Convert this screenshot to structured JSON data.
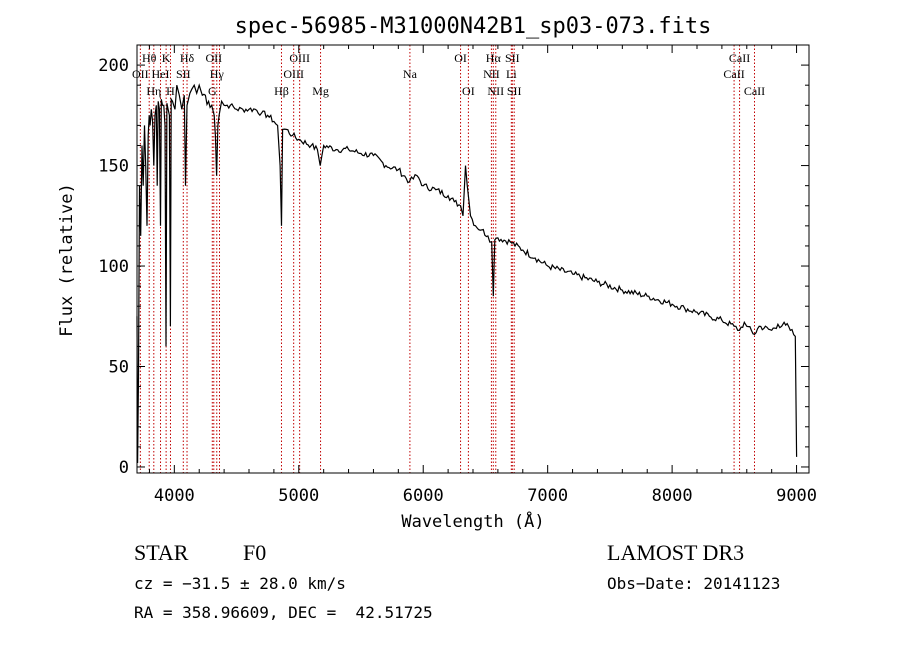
{
  "chart_data": {
    "type": "line",
    "title": "spec-56985-M31000N42B1_sp03-073.fits",
    "xlabel": "Wavelength (Å)",
    "ylabel": "Flux (relative)",
    "xlim": [
      3700,
      9100
    ],
    "ylim": [
      -3,
      210
    ],
    "xticks": [
      4000,
      5000,
      6000,
      7000,
      8000,
      9000
    ],
    "yticks": [
      0,
      50,
      100,
      150,
      200
    ],
    "grid": false,
    "series": [
      {
        "name": "flux",
        "x": [
          3700,
          3705,
          3712,
          3720,
          3730,
          3740,
          3750,
          3760,
          3770,
          3780,
          3790,
          3798,
          3805,
          3815,
          3825,
          3835,
          3845,
          3855,
          3862,
          3870,
          3880,
          3889,
          3895,
          3905,
          3915,
          3925,
          3933,
          3940,
          3950,
          3960,
          3968,
          3975,
          3985,
          3995,
          4005,
          4020,
          4040,
          4060,
          4080,
          4090,
          4102,
          4110,
          4125,
          4140,
          4160,
          4180,
          4200,
          4225,
          4250,
          4275,
          4300,
          4320,
          4330,
          4340,
          4350,
          4360,
          4380,
          4400,
          4450,
          4500,
          4550,
          4600,
          4650,
          4700,
          4750,
          4800,
          4830,
          4850,
          4861,
          4870,
          4900,
          4950,
          5000,
          5100,
          5150,
          5172,
          5200,
          5300,
          5400,
          5500,
          5600,
          5700,
          5800,
          5890,
          5950,
          6000,
          6100,
          6200,
          6250,
          6300,
          6320,
          6340,
          6380,
          6420,
          6470,
          6520,
          6550,
          6563,
          6575,
          6600,
          6700,
          6800,
          6900,
          7000,
          7200,
          7400,
          7600,
          7800,
          8000,
          8100,
          8200,
          8300,
          8400,
          8498,
          8542,
          8580,
          8600,
          8662,
          8700,
          8800,
          8850,
          8880,
          8900,
          8950,
          8990,
          9000
        ],
        "y": [
          75,
          2,
          45,
          140,
          115,
          160,
          140,
          170,
          150,
          120,
          165,
          175,
          170,
          178,
          172,
          150,
          175,
          180,
          140,
          182,
          178,
          120,
          183,
          180,
          180,
          170,
          60,
          181,
          178,
          175,
          70,
          183,
          182,
          180,
          178,
          190,
          185,
          178,
          185,
          140,
          180,
          182,
          186,
          188,
          190,
          186,
          190,
          185,
          185,
          182,
          180,
          175,
          165,
          145,
          170,
          175,
          182,
          180,
          180,
          178,
          178,
          178,
          178,
          176,
          175,
          172,
          170,
          150,
          120,
          168,
          168,
          165,
          163,
          160,
          158,
          150,
          160,
          158,
          158,
          156,
          155,
          150,
          148,
          142,
          145,
          140,
          138,
          135,
          132,
          130,
          125,
          150,
          125,
          120,
          118,
          115,
          112,
          85,
          113,
          114,
          112,
          108,
          104,
          100,
          96,
          92,
          88,
          85,
          81,
          79,
          77,
          75,
          73,
          70,
          68,
          72,
          70,
          66,
          70,
          68,
          71,
          70,
          72,
          68,
          65,
          5
        ]
      }
    ],
    "lines": [
      {
        "label": "OII",
        "wave": 3727,
        "row": 2,
        "side": "top"
      },
      {
        "label": "Hθ",
        "wave": 3798,
        "row": 1,
        "side": "top"
      },
      {
        "label": "Hη",
        "wave": 3835,
        "row": 3,
        "side": "top"
      },
      {
        "label": "HeI",
        "wave": 3889,
        "row": 2,
        "side": "top"
      },
      {
        "label": "K",
        "wave": 3934,
        "row": 1,
        "side": "top"
      },
      {
        "label": "H",
        "wave": 3969,
        "row": 3,
        "side": "top"
      },
      {
        "label": "SII",
        "wave": 4072,
        "row": 2,
        "side": "top"
      },
      {
        "label": "Hδ",
        "wave": 4102,
        "row": 1,
        "side": "top"
      },
      {
        "label": "G",
        "wave": 4305,
        "row": 3,
        "side": "top"
      },
      {
        "label": "OII",
        "wave": 4317,
        "row": 1,
        "side": "top"
      },
      {
        "label": "Hγ",
        "wave": 4341,
        "row": 2,
        "side": "top"
      },
      {
        "label": "OIII",
        "wave": 4363,
        "row": null,
        "side": "none"
      },
      {
        "label": "Hβ",
        "wave": 4861,
        "row": 3,
        "side": "top"
      },
      {
        "label": "OIII",
        "wave": 4959,
        "row": 2,
        "side": "top"
      },
      {
        "label": "OIII",
        "wave": 5007,
        "row": 1,
        "side": "top"
      },
      {
        "label": "Mg",
        "wave": 5175,
        "row": 3,
        "side": "top"
      },
      {
        "label": "Na",
        "wave": 5893,
        "row": 2,
        "side": "top"
      },
      {
        "label": "OI",
        "wave": 6300,
        "row": 1,
        "side": "top"
      },
      {
        "label": "OI",
        "wave": 6363,
        "row": 3,
        "side": "top"
      },
      {
        "label": "NII",
        "wave": 6548,
        "row": 2,
        "side": "top"
      },
      {
        "label": "Hα",
        "wave": 6563,
        "row": 1,
        "side": "top"
      },
      {
        "label": "NII",
        "wave": 6583,
        "row": 3,
        "side": "top"
      },
      {
        "label": "Li",
        "wave": 6708,
        "row": 2,
        "side": "top"
      },
      {
        "label": "SII",
        "wave": 6716,
        "row": 1,
        "side": "top"
      },
      {
        "label": "SII",
        "wave": 6731,
        "row": 3,
        "side": "top"
      },
      {
        "label": "CaII",
        "wave": 8498,
        "row": 2,
        "side": "top"
      },
      {
        "label": "CaII",
        "wave": 8542,
        "row": 1,
        "side": "top"
      },
      {
        "label": "CaII",
        "wave": 8662,
        "row": 3,
        "side": "top"
      }
    ],
    "line_color": "#c00000"
  },
  "info": {
    "class_label": "STAR",
    "subclass_label": "F0",
    "survey": "LAMOST DR3",
    "cz": "cz = −31.5 ± 28.0 km/s",
    "obs_date": "Obs−Date: 20141123",
    "radec": "RA = 358.96609, DEC =  42.51725"
  }
}
